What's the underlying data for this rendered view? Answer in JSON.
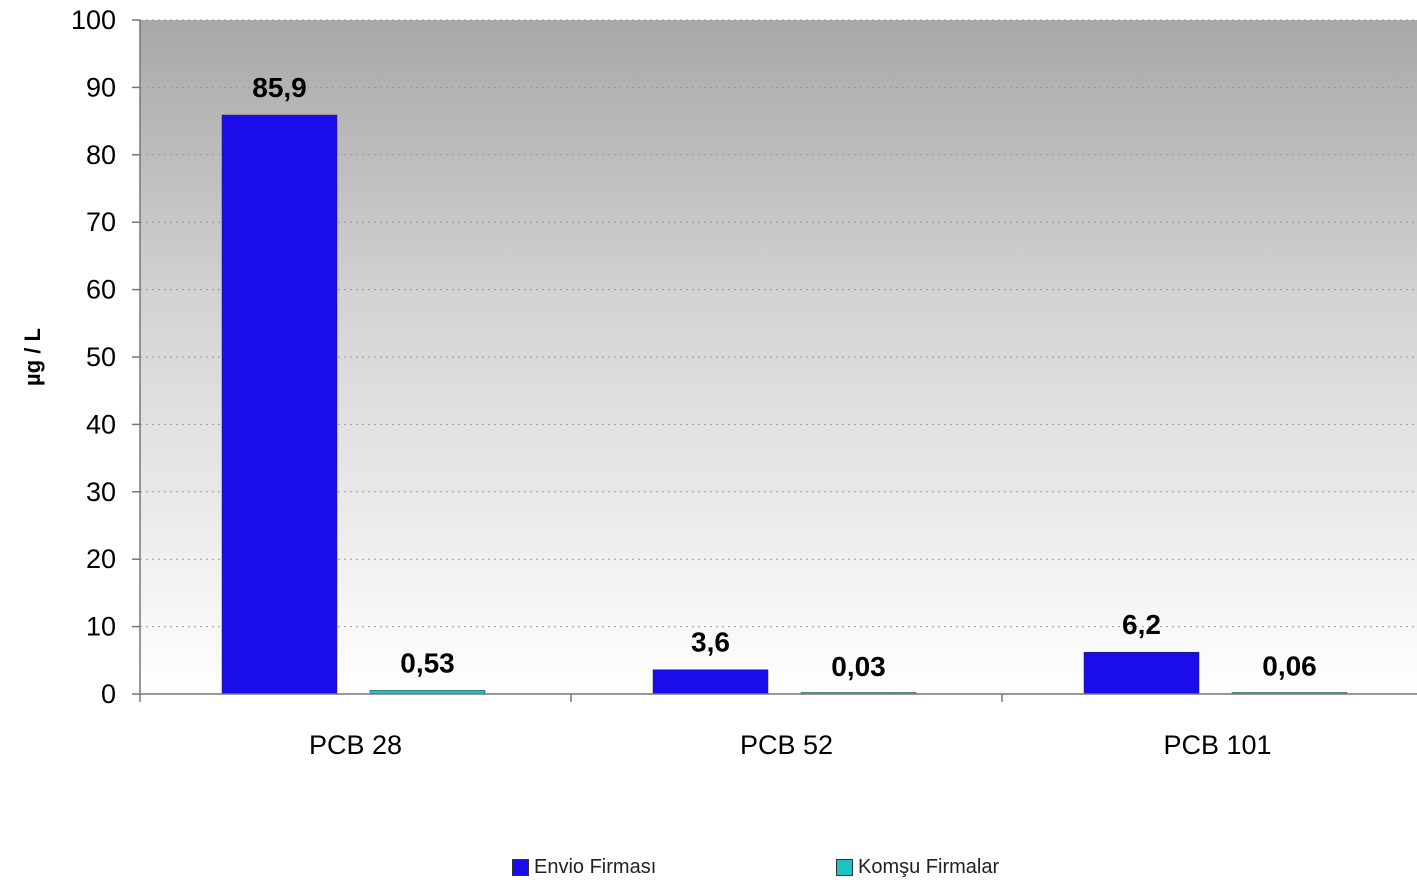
{
  "chart_data": {
    "type": "bar",
    "ylabel": "µg / L",
    "xlabel": "",
    "ylim": [
      0,
      100
    ],
    "yticks": [
      0,
      10,
      20,
      30,
      40,
      50,
      60,
      70,
      80,
      90,
      100
    ],
    "categories": [
      "PCB 28",
      "PCB 52",
      "PCB 101"
    ],
    "series": [
      {
        "name": "Envio Firması",
        "values": [
          85.9,
          3.6,
          6.2
        ],
        "labels": [
          "85,9",
          "3,6",
          "6,2"
        ],
        "color": "#1a0dea"
      },
      {
        "name": "Komşu Firmalar",
        "values": [
          0.53,
          0.03,
          0.06
        ],
        "labels": [
          "0,53",
          "0,03",
          "0,06"
        ],
        "color": "#1fc2c2"
      }
    ],
    "grid": true,
    "legend_position": "bottom",
    "background": "gradient gray to white"
  }
}
